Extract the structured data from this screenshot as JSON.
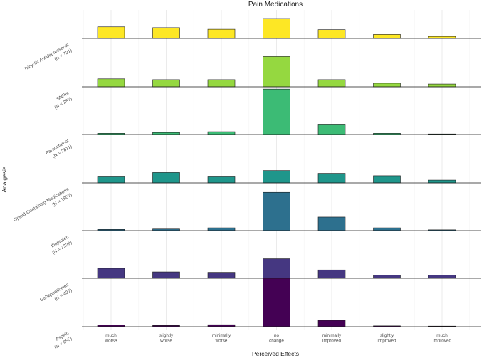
{
  "chart_data": {
    "type": "bar",
    "title": "Pain Medications",
    "xlabel": "Perceived Effects",
    "ylabel": "Analgesia",
    "categories": [
      [
        "much",
        "worse"
      ],
      [
        "slightly",
        "worse"
      ],
      [
        "minimally",
        "worse"
      ],
      [
        "no",
        "change"
      ],
      [
        "minimally",
        "improved"
      ],
      [
        "slightly",
        "improved"
      ],
      [
        "much",
        "improved"
      ]
    ],
    "series": [
      {
        "name": "Tricyclic Antidepressants",
        "n_label": "(N = 721)",
        "color": "#fde725",
        "values": [
          0.145,
          0.135,
          0.115,
          0.25,
          0.11,
          0.05,
          0.025
        ]
      },
      {
        "name": "SNRIs",
        "n_label": "(N = 287)",
        "color": "#95d840",
        "values": [
          0.1,
          0.09,
          0.09,
          0.38,
          0.09,
          0.045,
          0.035
        ]
      },
      {
        "name": "Paracetamol",
        "n_label": "(N = 2811)",
        "color": "#3cbb75",
        "values": [
          0.015,
          0.025,
          0.035,
          0.57,
          0.13,
          0.015,
          0.005
        ]
      },
      {
        "name": "Opioid-Containing Medications",
        "n_label": "(N = 1807)",
        "color": "#1f968b",
        "values": [
          0.085,
          0.13,
          0.085,
          0.155,
          0.12,
          0.09,
          0.035
        ]
      },
      {
        "name": "Ibuprofen",
        "n_label": "(N = 2329)",
        "color": "#2d708e",
        "values": [
          0.015,
          0.02,
          0.035,
          0.48,
          0.17,
          0.035,
          0.01
        ]
      },
      {
        "name": "Gabapentinoids",
        "n_label": "(N = 427)",
        "color": "#453781",
        "values": [
          0.125,
          0.08,
          0.075,
          0.245,
          0.105,
          0.04,
          0.04
        ]
      },
      {
        "name": "Aspirin",
        "n_label": "(N = 655)",
        "color": "#440154",
        "values": [
          0.02,
          0.015,
          0.025,
          0.61,
          0.08,
          0.01,
          0.005
        ]
      }
    ],
    "layout_order": "top-to-bottom as listed",
    "grid": true,
    "legend": "none"
  }
}
